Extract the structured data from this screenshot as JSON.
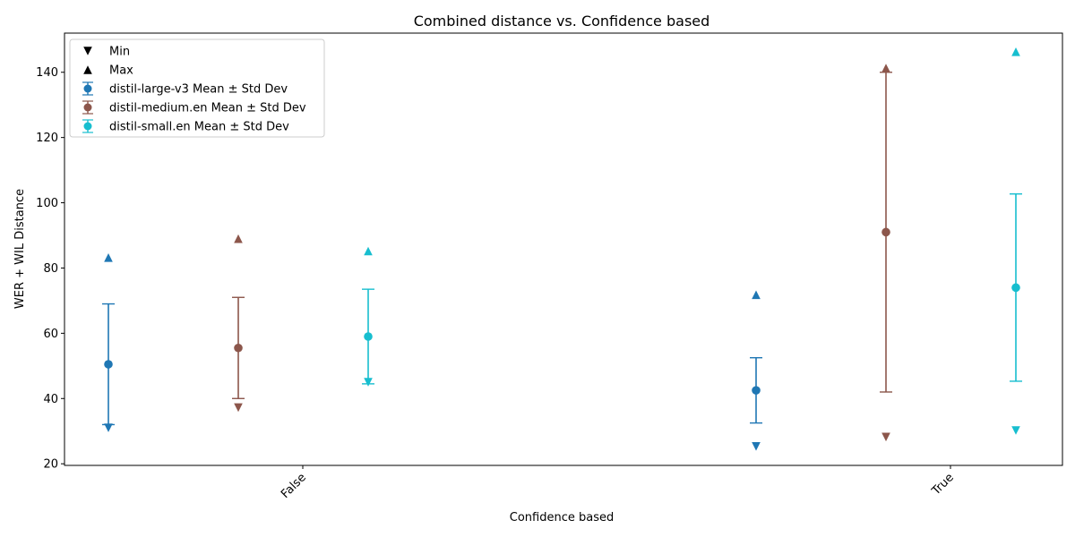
{
  "chart_data": {
    "type": "scatter",
    "title": "Combined distance vs. Confidence based",
    "xlabel": "Confidence based",
    "ylabel": "WER + WIL Distance",
    "categories": [
      "False",
      "True"
    ],
    "ylim": [
      19.5,
      152
    ],
    "yticks": [
      20,
      40,
      60,
      80,
      100,
      120,
      140
    ],
    "grid": false,
    "legend_position": "top-left",
    "legend": [
      {
        "label": "Min",
        "marker": "triangle-down",
        "color": "#000000"
      },
      {
        "label": "Max",
        "marker": "triangle-up",
        "color": "#000000"
      },
      {
        "label": "distil-large-v3 Mean ± Std Dev",
        "marker": "errorbar",
        "color": "#1f77b4"
      },
      {
        "label": "distil-medium.en Mean ± Std Dev",
        "marker": "errorbar",
        "color": "#8c564b"
      },
      {
        "label": "distil-small.en Mean ± Std Dev",
        "marker": "errorbar",
        "color": "#17becf"
      }
    ],
    "series": [
      {
        "name": "distil-large-v3",
        "color": "#1f77b4",
        "mean": [
          50.5,
          42.5
        ],
        "std": [
          18.5,
          10.0
        ],
        "min": [
          31.0,
          25.3
        ],
        "max": [
          83.2,
          71.8
        ]
      },
      {
        "name": "distil-medium.en",
        "color": "#8c564b",
        "mean": [
          55.5,
          91.0
        ],
        "std": [
          15.5,
          49.0
        ],
        "min": [
          37.2,
          28.2
        ],
        "max": [
          89.0,
          141.3
        ]
      },
      {
        "name": "distil-small.en",
        "color": "#17becf",
        "mean": [
          59.0,
          74.0
        ],
        "std": [
          14.5,
          28.7
        ],
        "min": [
          45.0,
          30.2
        ],
        "max": [
          85.2,
          146.3
        ]
      }
    ]
  }
}
